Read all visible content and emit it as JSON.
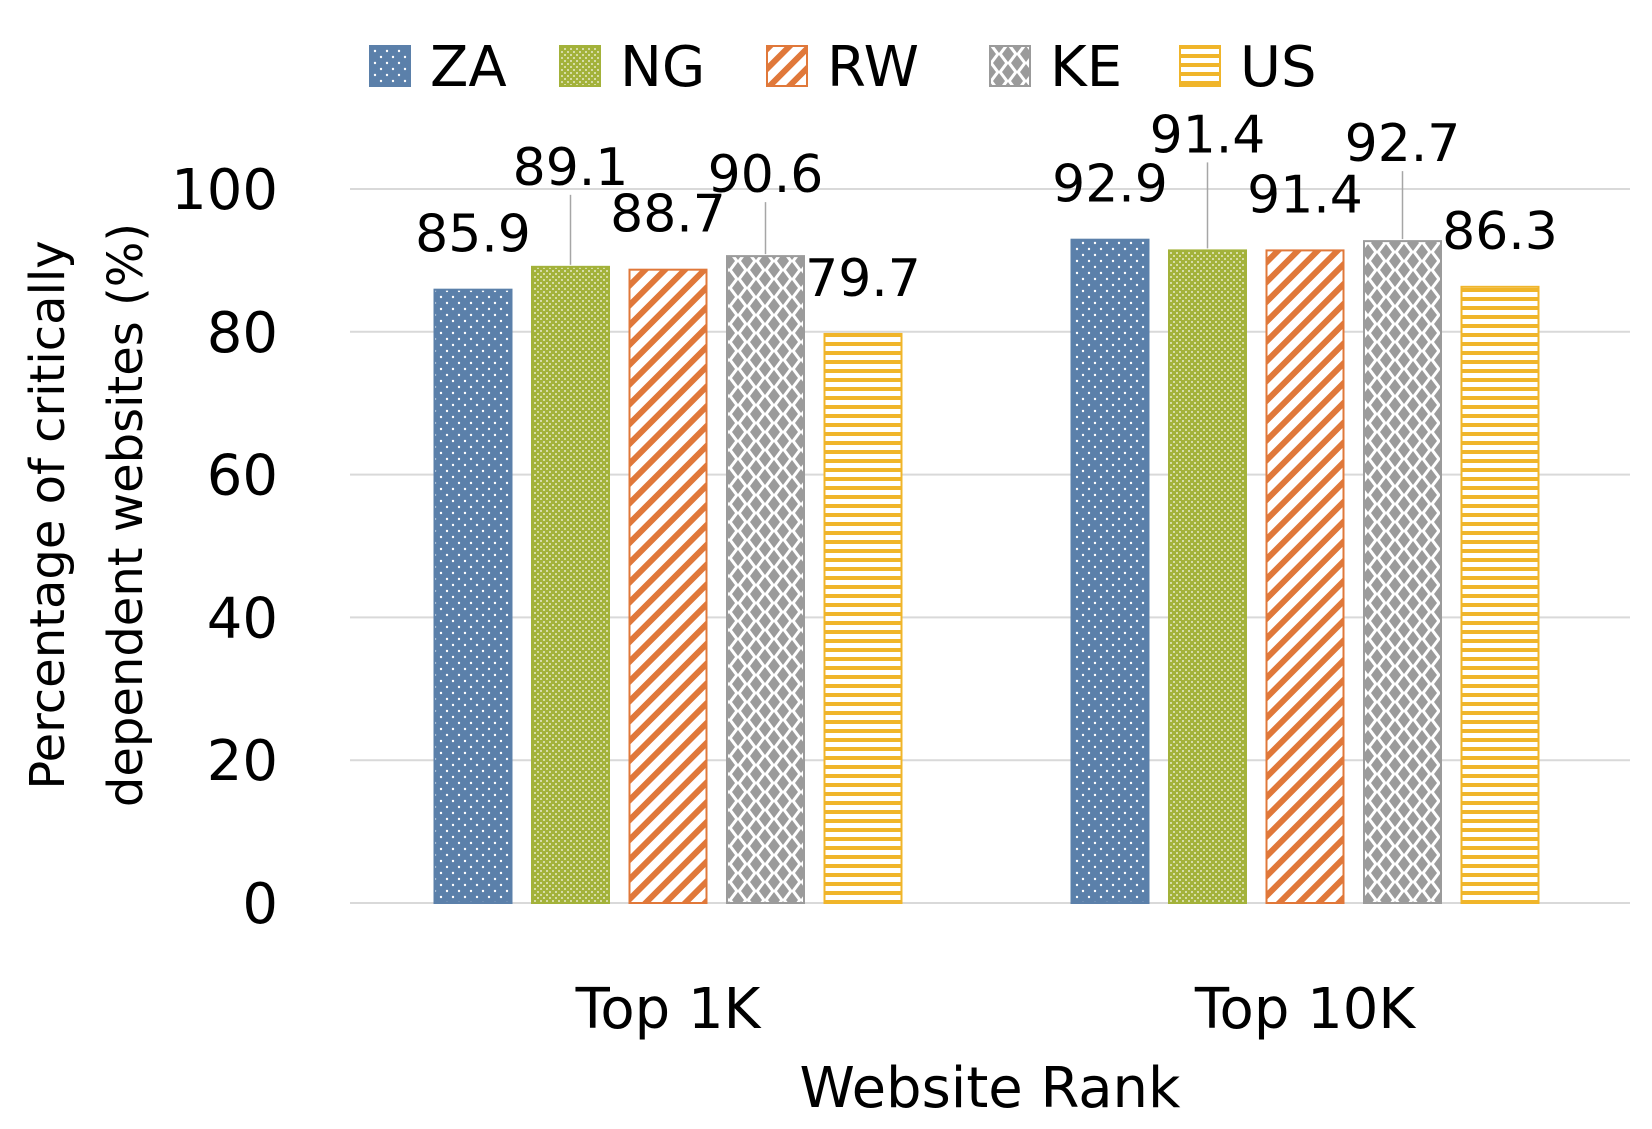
{
  "chart_data": {
    "type": "bar",
    "categories": [
      "Top 1K",
      "Top 10K"
    ],
    "series": [
      {
        "name": "ZA",
        "values": [
          85.9,
          92.9
        ],
        "color": "#5B80AA",
        "pattern": "dots"
      },
      {
        "name": "NG",
        "values": [
          89.1,
          91.4
        ],
        "color": "#A3B23A",
        "pattern": "fine-grid"
      },
      {
        "name": "RW",
        "values": [
          88.7,
          91.4
        ],
        "color": "#E0783A",
        "pattern": "diagonal-stripes"
      },
      {
        "name": "KE",
        "values": [
          90.6,
          92.7
        ],
        "color": "#9B9B9B",
        "pattern": "checker"
      },
      {
        "name": "US",
        "values": [
          79.7,
          86.3
        ],
        "color": "#F0B52A",
        "pattern": "horizontal-stripes"
      }
    ],
    "data_labels": [
      [
        "85.9",
        "92.9"
      ],
      [
        "89.1",
        "91.4"
      ],
      [
        "88.7",
        "91.4"
      ],
      [
        "90.6",
        "92.7"
      ],
      [
        "79.7",
        "86.3"
      ]
    ],
    "xlabel": "Website Rank",
    "ylabel_lines": [
      "Percentage of critically",
      "dependent websites (%)"
    ],
    "ylim": [
      0,
      100
    ],
    "yticks": [
      "0",
      "20",
      "40",
      "60",
      "80",
      "100"
    ],
    "grid": true,
    "legend_position": "top"
  }
}
